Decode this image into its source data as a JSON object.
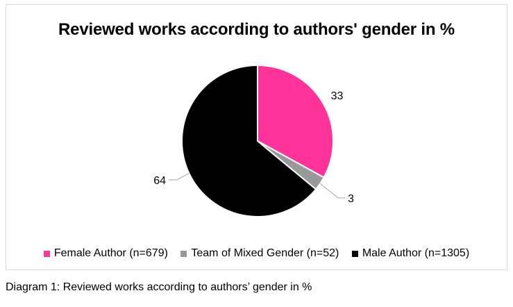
{
  "chart_data": {
    "type": "pie",
    "title": "Reviewed works according to authors' gender in %",
    "slices": [
      {
        "label": "Female Author (n=679)",
        "value": 33,
        "color": "#ff3399"
      },
      {
        "label": "Team of Mixed Gender (n=52)",
        "value": 3,
        "color": "#999999"
      },
      {
        "label": "Male Author (n=1305)",
        "value": 64,
        "color": "#000000"
      }
    ],
    "legend_position": "bottom",
    "start": "top, clockwise"
  },
  "caption": "Diagram 1: Reviewed works according to authors’ gender in %"
}
